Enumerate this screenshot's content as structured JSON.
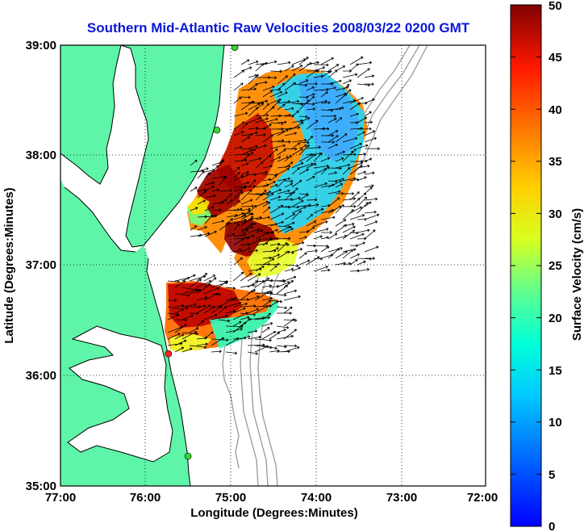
{
  "title": "Southern Mid-Atlantic Raw Velocities 2008/03/22 0200 GMT",
  "x_axis": {
    "label": "Longitude (Degrees:Minutes)",
    "ticks": [
      "77:00",
      "76:00",
      "75:00",
      "74:00",
      "73:00",
      "72:00"
    ]
  },
  "y_axis": {
    "label": "Latitude (Degrees:Minutes)",
    "ticks": [
      "39:00",
      "38:00",
      "37:00",
      "36:00",
      "35:00"
    ]
  },
  "colorbar": {
    "label": "Surface Velocity (cm/s)",
    "ticks": [
      "0",
      "5",
      "10",
      "15",
      "20",
      "25",
      "30",
      "35",
      "40",
      "45",
      "50"
    ],
    "min": 0,
    "max": 50,
    "colormap": "jet"
  },
  "map": {
    "lon_range": [
      -77,
      -72
    ],
    "lat_range": [
      35,
      39
    ],
    "land_color": "#5ef5a8",
    "coast_color": "#000000",
    "bathymetry_color": "#9a9a9a",
    "grid": "dotted",
    "sites": [
      {
        "lon": -74.95,
        "lat": 38.98,
        "color": "#33d633"
      },
      {
        "lon": -75.16,
        "lat": 38.23,
        "color": "#33d633"
      },
      {
        "lon": -75.73,
        "lat": 36.2,
        "color": "#ff2020"
      },
      {
        "lon": -75.5,
        "lat": 35.27,
        "color": "#33d633"
      }
    ]
  }
}
